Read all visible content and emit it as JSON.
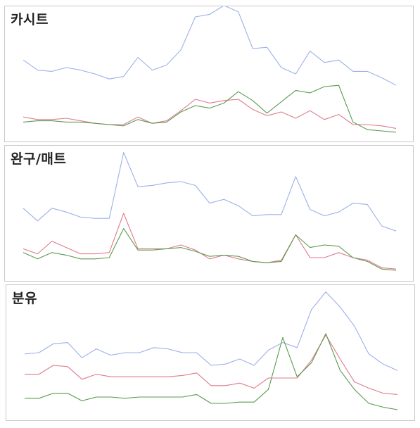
{
  "colors": {
    "series_1": "#9cb0ea",
    "series_2": "#e07a8c",
    "series_3": "#5a9a4e"
  },
  "chart_data": [
    {
      "type": "line",
      "title": "카시트",
      "grid": false,
      "ylim": [
        0,
        100
      ],
      "x": [
        1,
        2,
        3,
        4,
        5,
        6,
        7,
        8,
        9,
        10,
        11,
        12,
        13,
        14,
        15,
        16,
        17,
        18,
        19,
        20,
        21,
        22,
        23,
        24,
        25,
        26,
        27
      ],
      "series": [
        {
          "values": [
            61,
            53,
            52,
            55,
            53,
            50,
            46,
            48,
            63,
            53,
            57,
            69,
            95,
            97,
            104,
            99,
            70,
            71,
            55,
            50,
            68,
            59,
            61,
            52,
            52,
            47,
            41
          ]
        },
        {
          "values": [
            16,
            14,
            14,
            15,
            13,
            11,
            10,
            10,
            16,
            11,
            13,
            21,
            30,
            27,
            29,
            30,
            22,
            17,
            20,
            15,
            21,
            14,
            18,
            10,
            10,
            9,
            7
          ]
        },
        {
          "values": [
            12,
            13,
            13,
            12,
            12,
            11,
            10,
            9,
            14,
            11,
            12,
            20,
            25,
            23,
            27,
            36,
            29,
            19,
            28,
            37,
            35,
            40,
            41,
            12,
            6,
            5,
            4
          ]
        }
      ]
    },
    {
      "type": "line",
      "title": "완구/매트",
      "grid": false,
      "ylim": [
        0,
        100
      ],
      "x": [
        1,
        2,
        3,
        4,
        5,
        6,
        7,
        8,
        9,
        10,
        11,
        12,
        13,
        14,
        15,
        16,
        17,
        18,
        19,
        20,
        21,
        22,
        23,
        24,
        25,
        26,
        27
      ],
      "series": [
        {
          "values": [
            54,
            44,
            54,
            51,
            47,
            46,
            46,
            98,
            71,
            72,
            74,
            75,
            72,
            58,
            61,
            56,
            48,
            49,
            49,
            79,
            53,
            48,
            51,
            58,
            57,
            40,
            36
          ]
        },
        {
          "values": [
            22,
            18,
            28,
            23,
            18,
            18,
            19,
            50,
            22,
            22,
            22,
            25,
            21,
            14,
            17,
            14,
            12,
            11,
            13,
            33,
            15,
            15,
            19,
            15,
            13,
            7,
            6
          ]
        },
        {
          "values": [
            19,
            14,
            19,
            17,
            14,
            14,
            15,
            38,
            21,
            21,
            22,
            23,
            20,
            16,
            17,
            16,
            12,
            11,
            12,
            33,
            23,
            25,
            24,
            15,
            12,
            6,
            5
          ]
        }
      ]
    },
    {
      "type": "line",
      "title": "분유",
      "grid": false,
      "ylim": [
        0,
        100
      ],
      "x": [
        1,
        2,
        3,
        4,
        5,
        6,
        7,
        8,
        9,
        10,
        11,
        12,
        13,
        14,
        15,
        16,
        17,
        18,
        19,
        20,
        21,
        22,
        23,
        24,
        25,
        26,
        27
      ],
      "series": [
        {
          "values": [
            49,
            50,
            57,
            58,
            46,
            53,
            48,
            50,
            50,
            54,
            53,
            50,
            50,
            40,
            41,
            45,
            40,
            52,
            58,
            54,
            84,
            98,
            86,
            71,
            49,
            41,
            36
          ]
        },
        {
          "values": [
            33,
            33,
            40,
            39,
            29,
            33,
            31,
            31,
            31,
            31,
            31,
            32,
            34,
            24,
            24,
            26,
            22,
            30,
            30,
            30,
            44,
            64,
            45,
            27,
            22,
            18,
            17
          ]
        },
        {
          "values": [
            14,
            14,
            18,
            18,
            12,
            15,
            15,
            14,
            15,
            15,
            15,
            15,
            17,
            10,
            10,
            11,
            11,
            21,
            62,
            31,
            42,
            65,
            36,
            21,
            10,
            7,
            5
          ]
        }
      ]
    }
  ]
}
